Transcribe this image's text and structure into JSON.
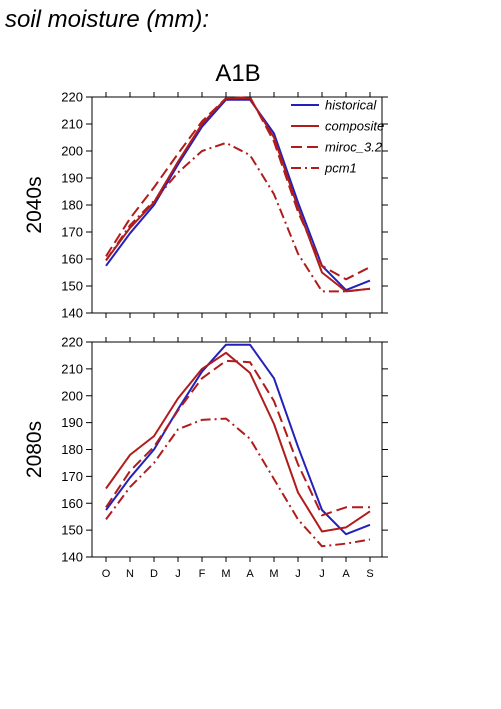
{
  "figure_title": "soil moisture (mm):",
  "scenario": "A1B",
  "colors": {
    "historical": "#2222bb",
    "models": "#b01c1c"
  },
  "legend": [
    {
      "key": "historical",
      "label": "historical",
      "color": "#2222bb",
      "dash": "solid"
    },
    {
      "key": "composite",
      "label": "composite",
      "color": "#b01c1c",
      "dash": "solid"
    },
    {
      "key": "miroc_3.2",
      "label": "miroc_3.2",
      "color": "#b01c1c",
      "dash": "dashed"
    },
    {
      "key": "pcm1",
      "label": "pcm1",
      "color": "#b01c1c",
      "dash": "dashdot"
    }
  ],
  "chart_data": [
    {
      "type": "line",
      "row_label": "2040s",
      "categories": [
        "O",
        "N",
        "D",
        "J",
        "F",
        "M",
        "A",
        "M",
        "J",
        "J",
        "A",
        "S"
      ],
      "ylim": [
        140,
        220
      ],
      "yticks": [
        140,
        150,
        160,
        170,
        180,
        190,
        200,
        210,
        220
      ],
      "series": [
        {
          "name": "historical",
          "color": "#2222bb",
          "dash": "solid",
          "values": [
            157.5,
            169.5,
            180,
            195,
            209,
            219,
            219,
            206.5,
            181,
            157.5,
            148.5,
            152
          ]
        },
        {
          "name": "composite",
          "color": "#b01c1c",
          "dash": "solid",
          "values": [
            159.5,
            171.5,
            181,
            196,
            210,
            219.5,
            219.5,
            205,
            179,
            155,
            148,
            149
          ]
        },
        {
          "name": "miroc_3.2",
          "color": "#b01c1c",
          "dash": "dashed",
          "values": [
            161,
            175,
            186.5,
            199,
            211,
            219.5,
            220,
            203.5,
            177.5,
            157.5,
            152.5,
            157
          ]
        },
        {
          "name": "pcm1",
          "color": "#b01c1c",
          "dash": "dashdot",
          "values": [
            159.5,
            172.5,
            181.5,
            192,
            200,
            203,
            198.5,
            184,
            162,
            148,
            148,
            149
          ]
        }
      ]
    },
    {
      "type": "line",
      "row_label": "2080s",
      "categories": [
        "O",
        "N",
        "D",
        "J",
        "F",
        "M",
        "A",
        "M",
        "J",
        "J",
        "A",
        "S"
      ],
      "ylim": [
        140,
        220
      ],
      "yticks": [
        140,
        150,
        160,
        170,
        180,
        190,
        200,
        210,
        220
      ],
      "series": [
        {
          "name": "historical",
          "color": "#2222bb",
          "dash": "solid",
          "values": [
            157.5,
            169.5,
            180,
            195,
            209,
            219,
            219,
            206.5,
            181,
            157.5,
            148.5,
            152
          ]
        },
        {
          "name": "composite",
          "color": "#b01c1c",
          "dash": "solid",
          "values": [
            165.5,
            178,
            185,
            199,
            210,
            216,
            208.5,
            189.5,
            164,
            149.5,
            151,
            157
          ]
        },
        {
          "name": "miroc_3.2",
          "color": "#b01c1c",
          "dash": "dashed",
          "values": [
            158.5,
            172,
            181,
            194.5,
            206.5,
            213,
            212.5,
            198,
            174.5,
            155.5,
            158.5,
            158.5
          ]
        },
        {
          "name": "pcm1",
          "color": "#b01c1c",
          "dash": "dashdot",
          "values": [
            154,
            166,
            175,
            187.5,
            191,
            191.5,
            184,
            169,
            154,
            144,
            145,
            146.5
          ]
        }
      ]
    }
  ]
}
